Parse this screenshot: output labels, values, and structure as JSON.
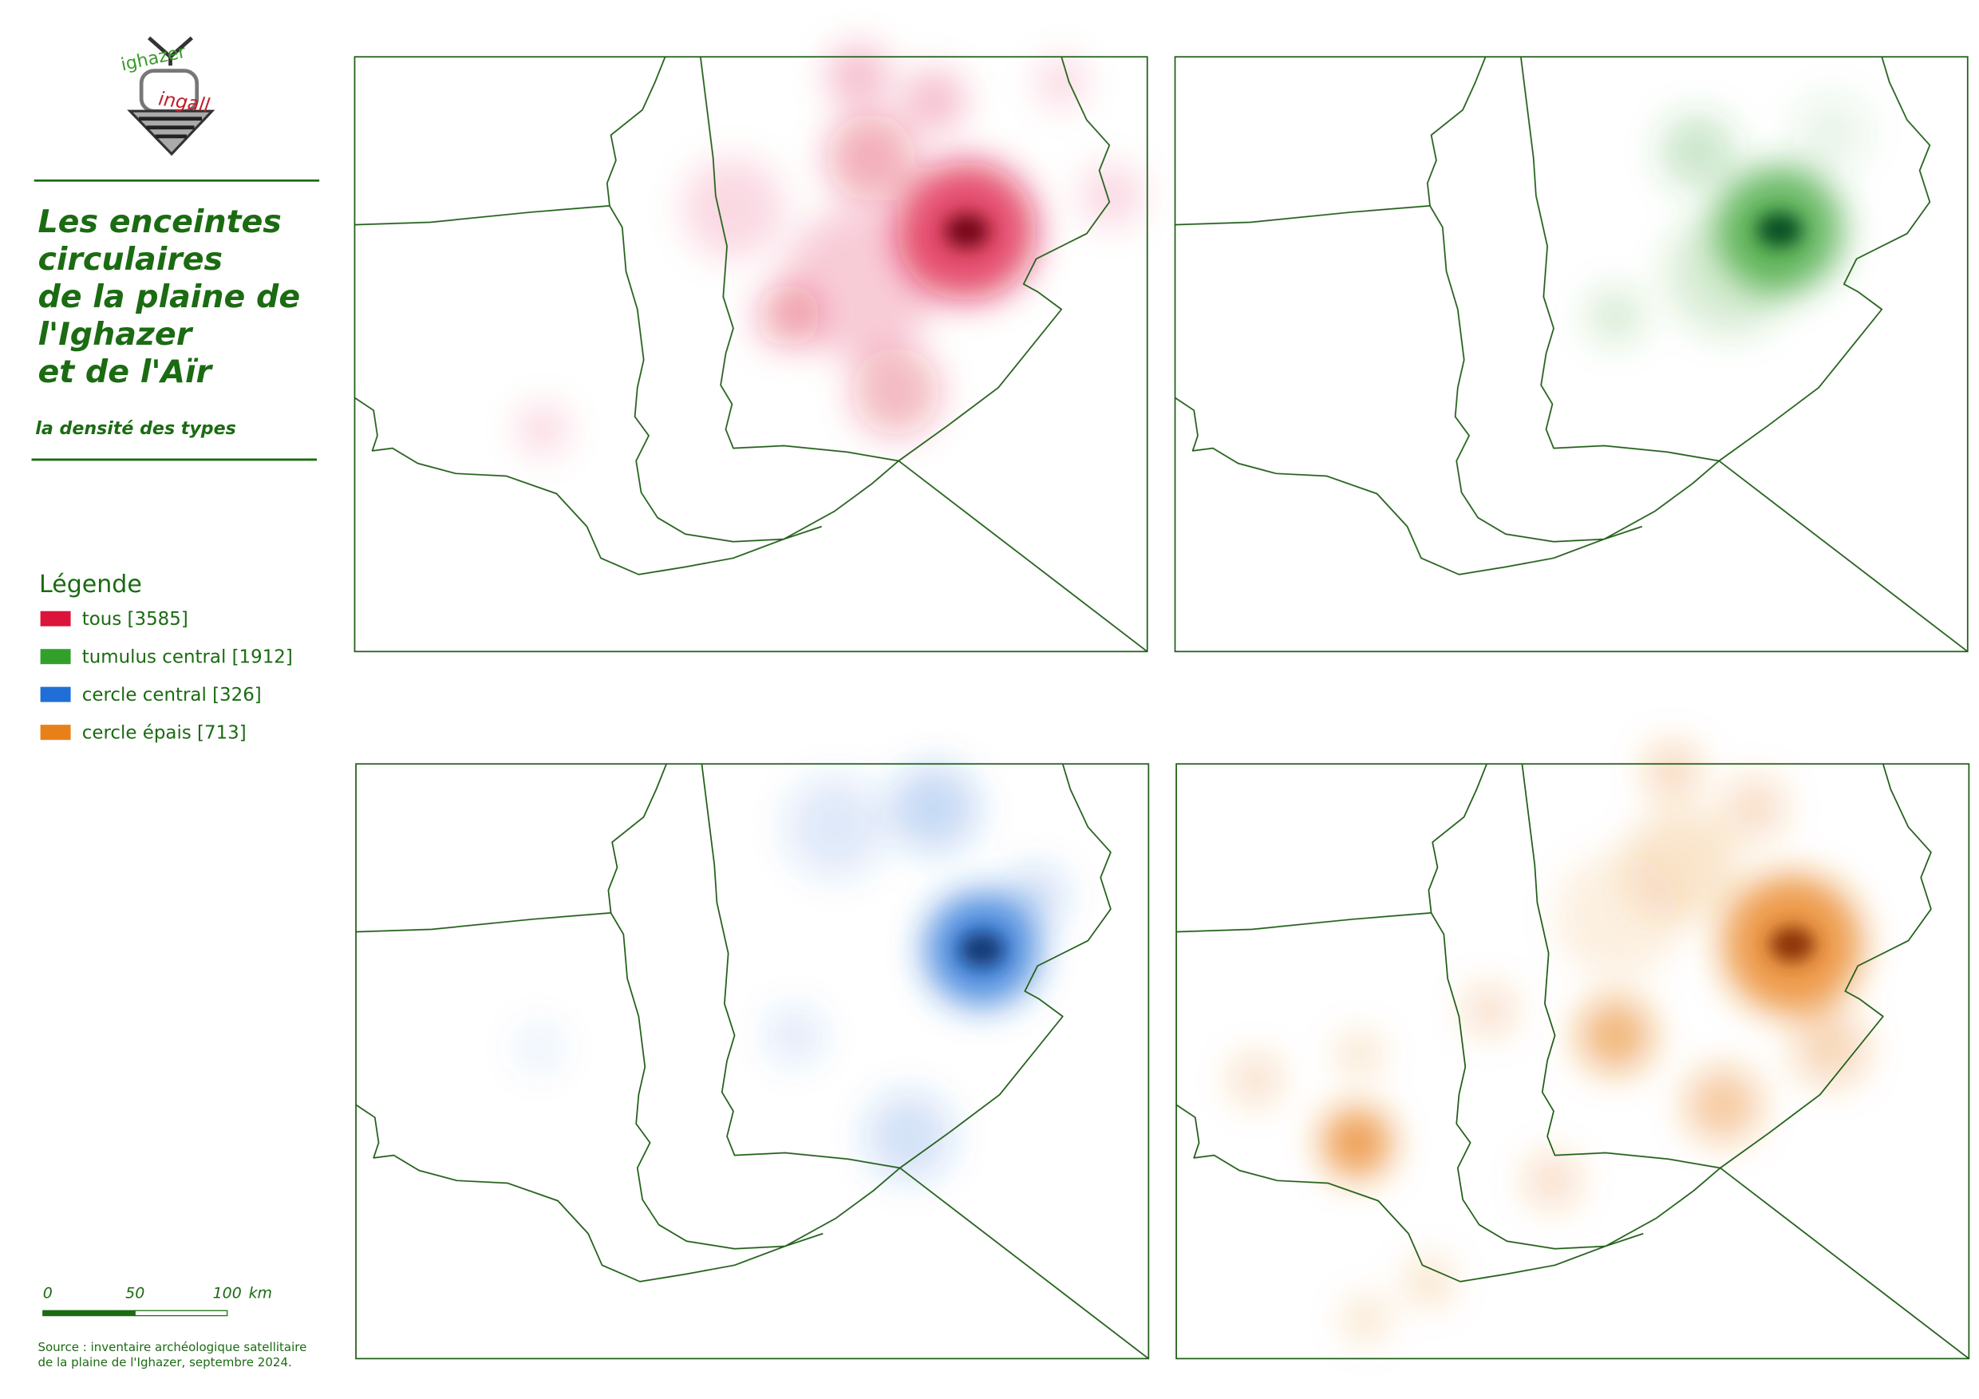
{
  "logo": {
    "top": "ighazer",
    "bottom": "ingall"
  },
  "title": [
    "Les enceintes",
    "circulaires",
    "de la plaine de",
    "l'Ighazer",
    "et de l'Aïr"
  ],
  "subtitle": "la densité des types",
  "legend": {
    "title": "Légende",
    "items": [
      {
        "label": "tous [3585]",
        "color": "#dc143c"
      },
      {
        "label": "tumulus central [1912]",
        "color": "#33a02c"
      },
      {
        "label": "cercle central [326]",
        "color": "#1f6fd6"
      },
      {
        "label": "cercle épais [713]",
        "color": "#e8801a"
      }
    ]
  },
  "scale": {
    "ticks": [
      0,
      50,
      100
    ],
    "unit": "km"
  },
  "source": [
    "Source : inventaire archéologique satellitaire",
    "de la plaine de l'Ighazer, septembre 2024."
  ]
}
